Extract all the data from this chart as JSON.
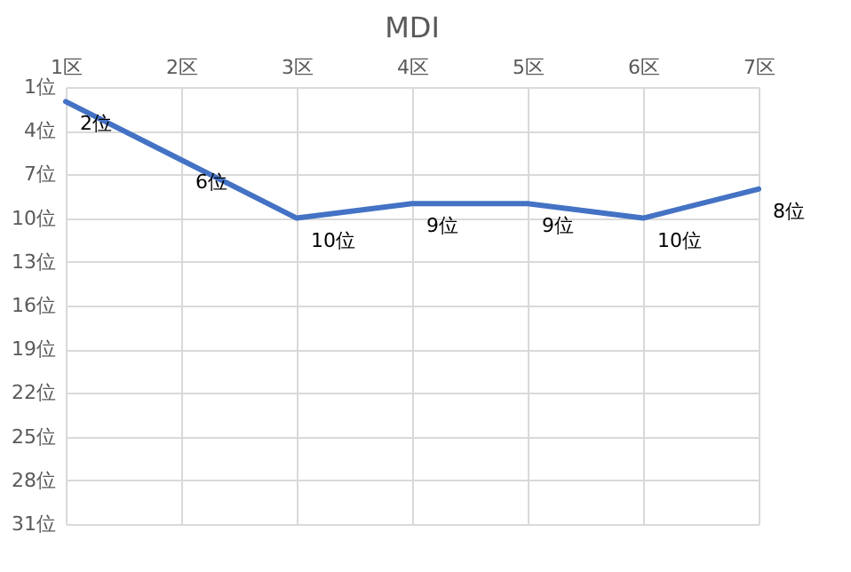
{
  "chart_data": {
    "type": "line",
    "title": "MDI",
    "categories": [
      "1区",
      "2区",
      "3区",
      "4区",
      "5区",
      "6区",
      "7区"
    ],
    "series": [
      {
        "color": "#4472c4",
        "values": [
          2,
          6,
          10,
          9,
          9,
          10,
          8
        ],
        "value_labels": [
          "2位",
          "6位",
          "10位",
          "9位",
          "9位",
          "10位",
          "8位"
        ]
      }
    ],
    "ylim": [
      31,
      1
    ],
    "yticks": [
      {
        "value": 1,
        "label": "1位"
      },
      {
        "value": 4,
        "label": "4位"
      },
      {
        "value": 7,
        "label": "7位"
      },
      {
        "value": 10,
        "label": "10位"
      },
      {
        "value": 13,
        "label": "13位"
      },
      {
        "value": 16,
        "label": "16位"
      },
      {
        "value": 19,
        "label": "19位"
      },
      {
        "value": 22,
        "label": "22位"
      },
      {
        "value": 25,
        "label": "25位"
      },
      {
        "value": 28,
        "label": "28位"
      },
      {
        "value": 31,
        "label": "31位"
      }
    ],
    "grid": true
  }
}
